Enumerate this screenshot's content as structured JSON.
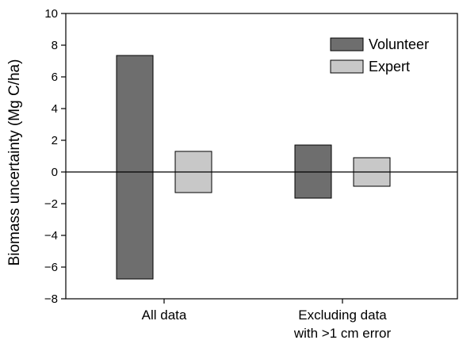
{
  "chart_data": {
    "type": "bar",
    "title": "",
    "xlabel": "",
    "ylabel": "Biomass uncertainty (Mg C/ha)",
    "ylim": [
      -8,
      10
    ],
    "yticks": [
      -8,
      -6,
      -4,
      -2,
      0,
      2,
      4,
      6,
      8,
      10
    ],
    "ytick_labels": [
      "−8",
      "−6",
      "−4",
      "−2",
      "0",
      "2",
      "4",
      "6",
      "8",
      "10"
    ],
    "grid": false,
    "zero_line": true,
    "legend_position": "top-right",
    "categories": [
      {
        "lines": [
          "All data"
        ]
      },
      {
        "lines": [
          "Excluding data",
          "with >1 cm error"
        ]
      }
    ],
    "series": [
      {
        "name": "Volunteer",
        "color": "#6e6e6e",
        "upper": [
          7.35,
          1.7
        ],
        "lower": [
          -6.75,
          -1.65
        ]
      },
      {
        "name": "Expert",
        "color": "#c8c8c8",
        "upper": [
          1.3,
          0.9
        ],
        "lower": [
          -1.3,
          -0.9
        ]
      }
    ]
  }
}
